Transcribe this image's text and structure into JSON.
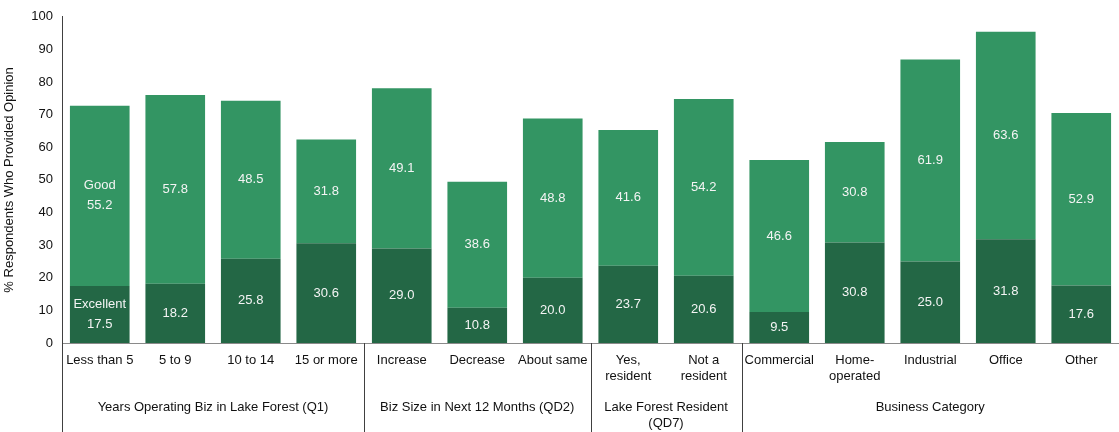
{
  "chart_data": {
    "type": "bar",
    "stacked": true,
    "ylabel": "% Respondents Who Provided Opinion",
    "categories": [
      "Less than 5",
      "5 to 9",
      "10 to 14",
      "15 or more",
      "Increase",
      "Decrease",
      "About same",
      "Yes, resident",
      "Not a resident",
      "Commercial",
      "Home-operated",
      "Industrial",
      "Office",
      "Other"
    ],
    "series": [
      {
        "name": "Excellent",
        "color": "#236745",
        "values": [
          17.5,
          18.2,
          25.8,
          30.6,
          29.0,
          10.8,
          20.0,
          23.7,
          20.6,
          9.5,
          30.8,
          25.0,
          31.8,
          17.6
        ],
        "value_labels": [
          "17.5",
          "18.2",
          "25.8",
          "30.6",
          "29.0",
          "10.8",
          "20.0",
          "23.7",
          "20.6",
          "9.5",
          "30.8",
          "25.0",
          "31.8",
          "17.6"
        ]
      },
      {
        "name": "Good",
        "color": "#339563",
        "values": [
          55.2,
          57.8,
          48.5,
          31.8,
          49.1,
          38.6,
          48.8,
          41.6,
          54.2,
          46.6,
          30.8,
          61.9,
          63.6,
          52.9
        ],
        "value_labels": [
          "55.2",
          "57.8",
          "48.5",
          "31.8",
          "49.1",
          "38.6",
          "48.8",
          "41.6",
          "54.2",
          "46.6",
          "30.8",
          "61.9",
          "63.6",
          "52.9"
        ]
      }
    ],
    "ylim": [
      0,
      100
    ],
    "yticks": [
      0,
      10,
      20,
      30,
      40,
      50,
      60,
      70,
      80,
      90,
      100
    ],
    "grid": false,
    "legend": false,
    "annotations": [
      "Years Operating Biz in Lake Forest (Q1)",
      "Biz Size in Next 12 Months (QD2)",
      "Lake Forest Resident (QD7)",
      "Business Category"
    ]
  }
}
